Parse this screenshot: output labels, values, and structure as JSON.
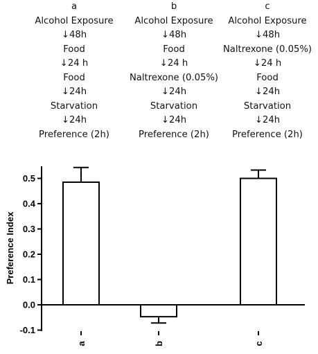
{
  "protocols": [
    {
      "label": "a",
      "steps": [
        "Alcohol Exposure",
        "↓48h",
        "Food",
        "↓24 h",
        "Food",
        "↓24h",
        "Starvation",
        "↓24h",
        "Preference  (2h)"
      ]
    },
    {
      "label": "b",
      "steps": [
        "Alcohol Exposure",
        "↓48h",
        "Food",
        "↓24 h",
        "Naltrexone (0.05%)",
        "↓24h",
        "Starvation",
        "↓24h",
        "Preference  (2h)"
      ]
    },
    {
      "label": "c",
      "steps": [
        "Alcohol Exposure",
        "↓48h",
        "Naltrexone (0.05%)",
        "↓24 h",
        "Food",
        "↓24h",
        "Starvation",
        "↓24h",
        "Preference  (2h)"
      ]
    }
  ],
  "chart_data": {
    "type": "bar",
    "categories": [
      "a",
      "b",
      "c"
    ],
    "values": [
      0.485,
      -0.047,
      0.5
    ],
    "errors": [
      0.058,
      0.025,
      0.033
    ],
    "ylabel": "Preference Index",
    "xlabel": "",
    "ylim": [
      -0.1,
      0.55
    ],
    "yticks": [
      -0.1,
      0.0,
      0.1,
      0.2,
      0.3,
      0.4,
      0.5
    ],
    "ytick_labels": [
      "-0.1",
      "0.0",
      "0.1",
      "0.2",
      "0.3",
      "0.4",
      "0.5"
    ],
    "bar_color": "#ffffff",
    "edge_color": "#000000"
  }
}
